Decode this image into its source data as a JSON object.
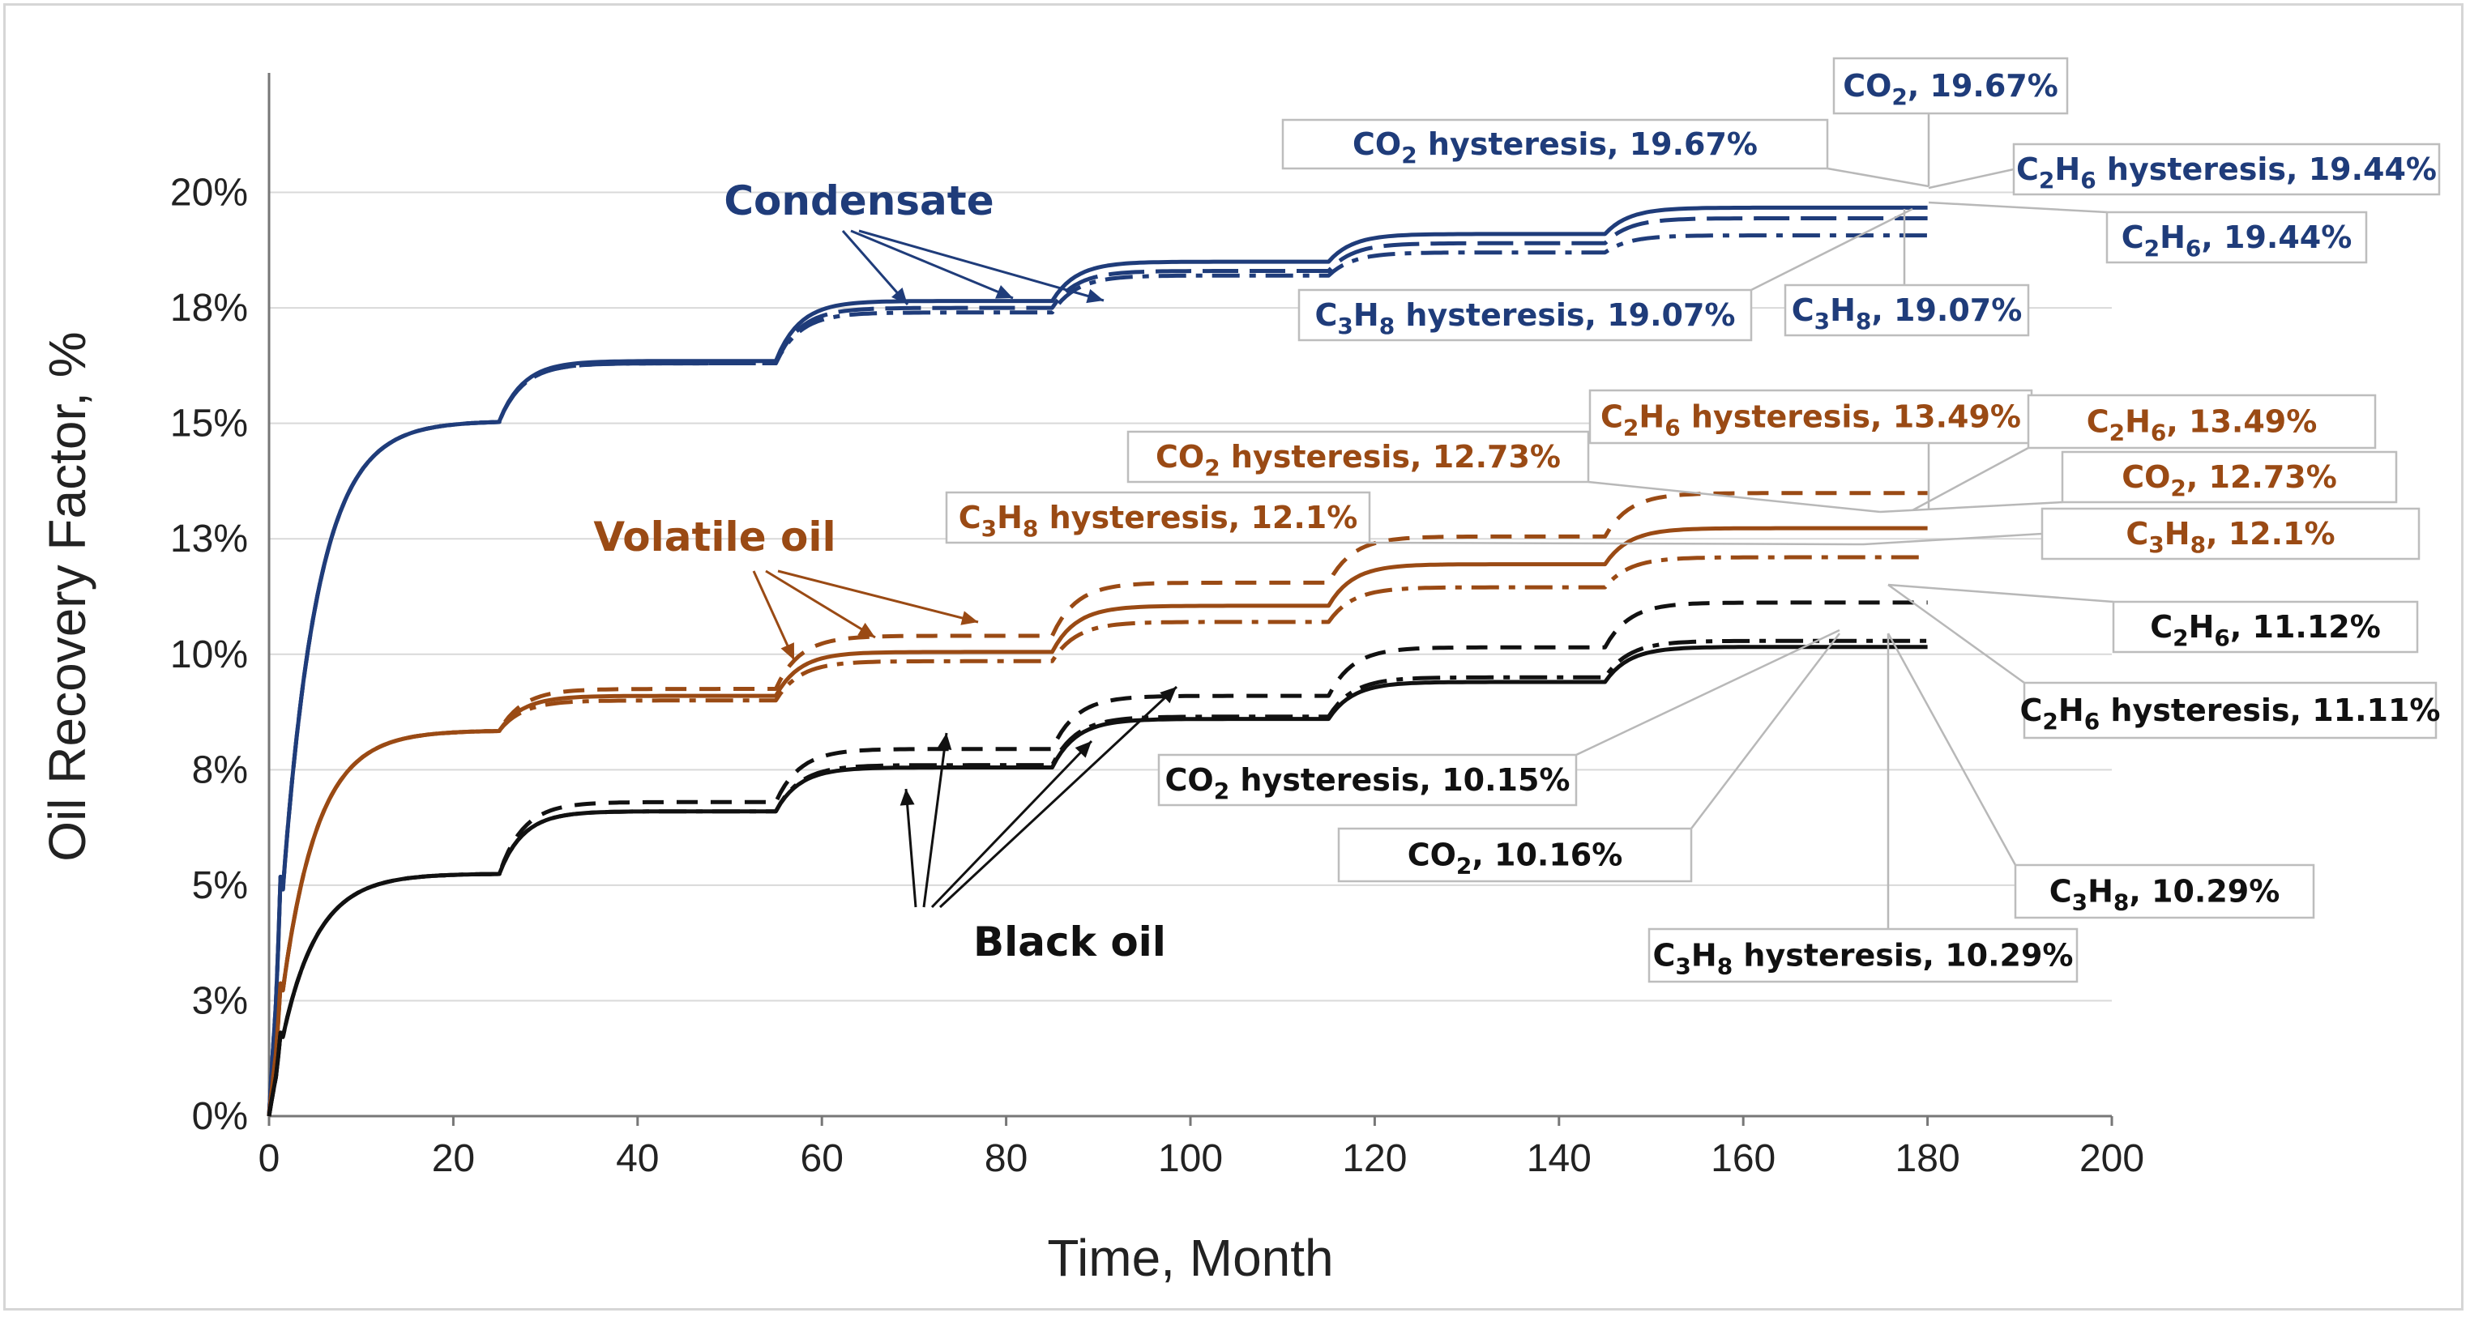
{
  "chart_data": {
    "type": "line",
    "title": "",
    "xlabel": "Time, Month",
    "ylabel": "Oil Recovery Factor, %",
    "xlim": [
      0,
      200
    ],
    "ylim": [
      0,
      22.5
    ],
    "x_ticks": [
      0,
      20,
      40,
      60,
      80,
      100,
      120,
      140,
      160,
      180,
      200
    ],
    "y_ticks": [
      {
        "v": 0,
        "label": "0%"
      },
      {
        "v": 2.5,
        "label": "3%"
      },
      {
        "v": 5,
        "label": "5%"
      },
      {
        "v": 7.5,
        "label": "8%"
      },
      {
        "v": 10,
        "label": "10%"
      },
      {
        "v": 12.5,
        "label": "13%"
      },
      {
        "v": 15,
        "label": "15%"
      },
      {
        "v": 17.5,
        "label": "18%"
      },
      {
        "v": 20,
        "label": "20%"
      }
    ],
    "grid": true,
    "colors": {
      "condensate": "#1f3c7a",
      "volatile": "#9a4a14",
      "black": "#111111",
      "leader": "#b8b8b8",
      "gridline": "#d9d9d9"
    },
    "plateaus": [
      25,
      55,
      85,
      115,
      145,
      180
    ],
    "groups": [
      {
        "name": "Condensate",
        "color": "#1f3c7a",
        "series": [
          {
            "name": "CO2",
            "dash": "solid",
            "values": [
              15.05,
              16.35,
              17.65,
              18.5,
              19.1,
              19.67
            ]
          },
          {
            "name": "CO2 hysteresis",
            "dash": "solid",
            "values": [
              15.05,
              16.35,
              17.65,
              18.5,
              19.1,
              19.67
            ]
          },
          {
            "name": "C2H6",
            "dash": "long",
            "values": [
              15.05,
              16.3,
              17.5,
              18.3,
              18.9,
              19.44
            ]
          },
          {
            "name": "C2H6 hysteresis",
            "dash": "long",
            "values": [
              15.05,
              16.3,
              17.5,
              18.3,
              18.9,
              19.44
            ]
          },
          {
            "name": "C3H8",
            "dash": "dashdot",
            "values": [
              15.05,
              16.3,
              17.4,
              18.2,
              18.7,
              19.07
            ]
          },
          {
            "name": "C3H8 hysteresis",
            "dash": "dashdot",
            "values": [
              15.05,
              16.3,
              17.4,
              18.2,
              18.7,
              19.07
            ]
          }
        ]
      },
      {
        "name": "Volatile oil",
        "color": "#9a4a14",
        "series": [
          {
            "name": "CO2",
            "dash": "solid",
            "values": [
              8.35,
              9.1,
              10.05,
              11.05,
              11.95,
              12.73
            ]
          },
          {
            "name": "CO2 hysteresis",
            "dash": "solid",
            "values": [
              8.35,
              9.1,
              10.05,
              11.05,
              11.95,
              12.73
            ]
          },
          {
            "name": "C2H6",
            "dash": "dash",
            "values": [
              8.35,
              9.25,
              10.4,
              11.55,
              12.55,
              13.49
            ]
          },
          {
            "name": "C2H6 hysteresis",
            "dash": "dash",
            "values": [
              8.35,
              9.25,
              10.4,
              11.55,
              12.55,
              13.49
            ]
          },
          {
            "name": "C3H8",
            "dash": "dashdot",
            "values": [
              8.35,
              9.0,
              9.85,
              10.7,
              11.45,
              12.1
            ]
          },
          {
            "name": "C3H8 hysteresis",
            "dash": "dashdot",
            "values": [
              8.35,
              9.0,
              9.85,
              10.7,
              11.45,
              12.1
            ]
          }
        ]
      },
      {
        "name": "Black oil",
        "color": "#111111",
        "series": [
          {
            "name": "CO2",
            "dash": "solid",
            "values": [
              5.25,
              6.6,
              7.55,
              8.6,
              9.4,
              10.16
            ]
          },
          {
            "name": "CO2 hysteresis",
            "dash": "solid",
            "values": [
              5.25,
              6.6,
              7.55,
              8.6,
              9.4,
              10.15
            ]
          },
          {
            "name": "C2H6",
            "dash": "dash",
            "values": [
              5.25,
              6.8,
              7.95,
              9.1,
              10.15,
              11.12
            ]
          },
          {
            "name": "C2H6 hysteresis",
            "dash": "dash",
            "values": [
              5.25,
              6.8,
              7.95,
              9.1,
              10.15,
              11.11
            ]
          },
          {
            "name": "C3H8",
            "dash": "dashdot",
            "values": [
              5.25,
              6.6,
              7.6,
              8.65,
              9.5,
              10.29
            ]
          },
          {
            "name": "C3H8 hysteresis",
            "dash": "dashdot",
            "values": [
              5.25,
              6.6,
              7.6,
              8.65,
              9.5,
              10.29
            ]
          }
        ]
      }
    ],
    "group_labels": [
      {
        "text": "Condensate",
        "color": "#1f3c7a"
      },
      {
        "text": "Volatile oil",
        "color": "#9a4a14"
      },
      {
        "text": "Black oil",
        "color": "#111111"
      }
    ],
    "annotations": [
      {
        "id": "cond-co2-hys",
        "pre": "CO",
        "sub": "2",
        "post": " hysteresis, 19.67%",
        "color": "#1f3c7a"
      },
      {
        "id": "cond-co2",
        "pre": "CO",
        "sub": "2",
        "post": ", 19.67%",
        "color": "#1f3c7a"
      },
      {
        "id": "cond-c2h6-hys",
        "pre": "C",
        "sub": "2",
        "mid": "H",
        "sub2": "6",
        "post": " hysteresis, 19.44%",
        "color": "#1f3c7a"
      },
      {
        "id": "cond-c2h6",
        "pre": "C",
        "sub": "2",
        "mid": "H",
        "sub2": "6",
        "post": ", 19.44%",
        "color": "#1f3c7a"
      },
      {
        "id": "cond-c3h8-hys",
        "pre": "C",
        "sub": "3",
        "mid": "H",
        "sub2": "8",
        "post": " hysteresis, 19.07%",
        "color": "#1f3c7a"
      },
      {
        "id": "cond-c3h8",
        "pre": "C",
        "sub": "3",
        "mid": "H",
        "sub2": "8",
        "post": ", 19.07%",
        "color": "#1f3c7a"
      },
      {
        "id": "vol-c2h6-hys",
        "pre": "C",
        "sub": "2",
        "mid": "H",
        "sub2": "6",
        "post": " hysteresis, 13.49%",
        "color": "#9a4a14"
      },
      {
        "id": "vol-c2h6",
        "pre": "C",
        "sub": "2",
        "mid": "H",
        "sub2": "6",
        "post": ", 13.49%",
        "color": "#9a4a14"
      },
      {
        "id": "vol-co2-hys",
        "pre": "CO",
        "sub": "2",
        "post": " hysteresis, 12.73%",
        "color": "#9a4a14"
      },
      {
        "id": "vol-co2",
        "pre": "CO",
        "sub": "2",
        "post": ", 12.73%",
        "color": "#9a4a14"
      },
      {
        "id": "vol-c3h8-hys",
        "pre": "C",
        "sub": "3",
        "mid": "H",
        "sub2": "8",
        "post": " hysteresis, 12.1%",
        "color": "#9a4a14"
      },
      {
        "id": "vol-c3h8",
        "pre": "C",
        "sub": "3",
        "mid": "H",
        "sub2": "8",
        "post": ", 12.1%",
        "color": "#9a4a14"
      },
      {
        "id": "blk-c2h6",
        "pre": "C",
        "sub": "2",
        "mid": "H",
        "sub2": "6",
        "post": ", 11.12%",
        "color": "#111111"
      },
      {
        "id": "blk-c2h6-hys",
        "pre": "C",
        "sub": "2",
        "mid": "H",
        "sub2": "6",
        "post": " hysteresis, 11.11%",
        "color": "#111111"
      },
      {
        "id": "blk-co2-hys",
        "pre": "CO",
        "sub": "2",
        "post": " hysteresis, 10.15%",
        "color": "#111111"
      },
      {
        "id": "blk-co2",
        "pre": "CO",
        "sub": "2",
        "post": ", 10.16%",
        "color": "#111111"
      },
      {
        "id": "blk-c3h8",
        "pre": "C",
        "sub": "3",
        "mid": "H",
        "sub2": "8",
        "post": ", 10.29%",
        "color": "#111111"
      },
      {
        "id": "blk-c3h8-hys",
        "pre": "C",
        "sub": "3",
        "mid": "H",
        "sub2": "8",
        "post": " hysteresis, 10.29%",
        "color": "#111111"
      }
    ]
  }
}
